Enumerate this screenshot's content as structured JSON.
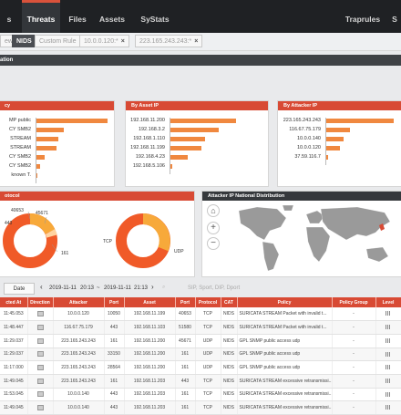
{
  "nav": {
    "tabs": [
      {
        "label": "s",
        "active": false
      },
      {
        "label": "Threats",
        "active": true
      },
      {
        "label": "Files",
        "active": false
      },
      {
        "label": "Assets",
        "active": false
      },
      {
        "label": "SyStats",
        "active": false
      },
      {
        "label": "Traprules",
        "active": false
      },
      {
        "label": "S",
        "active": false
      }
    ]
  },
  "filters": {
    "chips": [
      {
        "label": "ew"
      },
      {
        "label": "NIDS"
      },
      {
        "label": "Custom Rule"
      },
      {
        "label": "10.0.0.120:*"
      },
      {
        "label": "223.165.243.243:*"
      }
    ],
    "remove_glyph": "×"
  },
  "section": {
    "title": "ation"
  },
  "panels": {
    "policy": {
      "title": "cy",
      "labels": [
        "MP public",
        "CY SMB2",
        "STREAM",
        "STREAM",
        "CY SMB2",
        "CY SMB2",
        "known T."
      ],
      "values": [
        180,
        70,
        55,
        50,
        20,
        10,
        3
      ],
      "max": 180
    },
    "asset": {
      "title": "By Asset IP",
      "labels": [
        "192.168.11.200",
        "192.168.3.2",
        "192.168.1.110",
        "192.168.11.199",
        "192.168.4.23",
        "192.168.5.106"
      ],
      "values": [
        150,
        110,
        80,
        70,
        40,
        5
      ],
      "max": 150
    },
    "attacker": {
      "title": "By Attacker IP",
      "labels": [
        "223.165.243.243",
        "116.67.75.179",
        "10.0.0.140",
        "10.0.0.120",
        "37.59.116.7"
      ],
      "values": [
        200,
        70,
        50,
        40,
        5
      ],
      "max": 200
    },
    "protocol": {
      "title": "otocol",
      "labels": [
        "40653",
        "443",
        "45671",
        "161"
      ],
      "donut2_labels": [
        "TCP",
        "UDP"
      ]
    },
    "map": {
      "title": "Attacker IP National Distribution",
      "home_glyph": "⌂",
      "zoom_in": "+",
      "zoom_out": "−"
    }
  },
  "toolbar": {
    "date_range_label": "Date Range",
    "prev": "‹",
    "start_date": "2019-11-11",
    "start_time": "20:13",
    "sep": "~",
    "end_date": "2019-11-11",
    "end_time": "21:13",
    "next": "›",
    "search_placeholder": "SIP, Sport, DIP, Dport"
  },
  "table": {
    "headers": [
      "cted At",
      "Direction",
      "Attacker",
      "Port",
      "Asset",
      "Port",
      "Protocol",
      "CAT",
      "Policy",
      "Policy Group",
      "Level"
    ],
    "rows": [
      [
        "11:45.053",
        "",
        "10.0.0.120",
        "10050",
        "192.168.11.199",
        "40653",
        "TCP",
        "NIDS",
        "SURICATA STREAM Packet with invalid t...",
        "-",
        ""
      ],
      [
        "11:48.447",
        "",
        "116.67.75.179",
        "443",
        "192.168.11.103",
        "51580",
        "TCP",
        "NIDS",
        "SURICATA STREAM Packet with invalid t...",
        "-",
        ""
      ],
      [
        "11:29.037",
        "",
        "223.165.243.243",
        "161",
        "192.168.11.200",
        "45671",
        "UDP",
        "NIDS",
        "GPL SNMP public access udp",
        "-",
        ""
      ],
      [
        "11:29.037",
        "",
        "223.165.243.243",
        "33150",
        "192.168.11.200",
        "161",
        "UDP",
        "NIDS",
        "GPL SNMP public access udp",
        "-",
        ""
      ],
      [
        "11:17.000",
        "",
        "223.165.243.243",
        "28564",
        "192.168.11.200",
        "161",
        "UDP",
        "NIDS",
        "GPL SNMP public access udp",
        "-",
        ""
      ],
      [
        "11:49.045",
        "",
        "223.165.243.243",
        "161",
        "192.168.11.203",
        "443",
        "TCP",
        "NIDS",
        "SURICATA STREAM excessive retransmissi...",
        "-",
        ""
      ],
      [
        "11:53.045",
        "",
        "10.0.0.140",
        "443",
        "192.168.11.203",
        "161",
        "TCP",
        "NIDS",
        "SURICATA STREAM excessive retransmissi...",
        "-",
        ""
      ],
      [
        "11:49.045",
        "",
        "10.0.0.140",
        "443",
        "192.168.11.203",
        "161",
        "TCP",
        "NIDS",
        "SURICATA STREAM excessive retransmissi...",
        "-",
        ""
      ]
    ]
  },
  "colors": {
    "accent": "#d84a34",
    "bar": "#f0883f",
    "donut_outer": "#f05a28",
    "donut_inner": "#f7a93a",
    "nav_bg": "#1f2124",
    "map_land": "#9a9a9a"
  }
}
